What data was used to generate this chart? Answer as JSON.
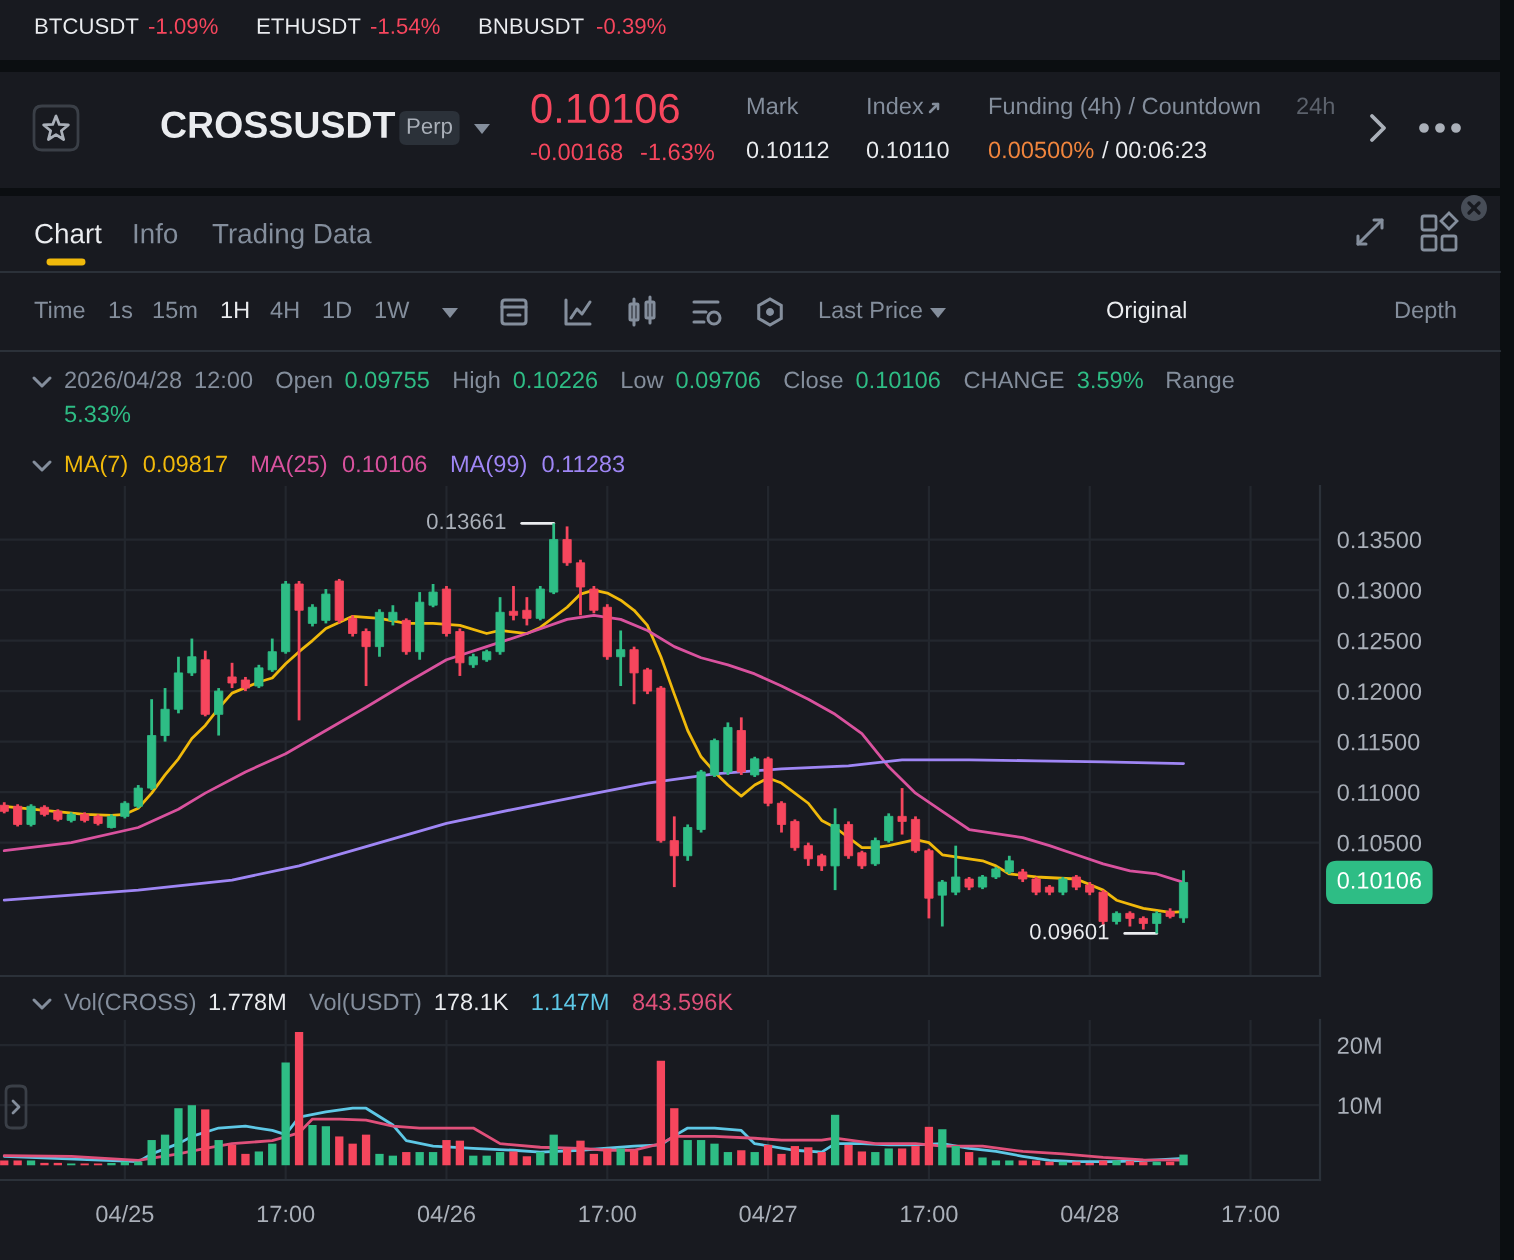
{
  "chart_data": [
    {
      "type": "other",
      "title": "CROSSUSDT",
      "annotations": [
        "BTCUSDT",
        "-1.09%",
        "ETHUSDT",
        "-1.54%",
        "BNBUSDT",
        "-0.39%",
        "Perp",
        "0.10106",
        "-0.00168",
        "-1.63%",
        "Mark",
        "0.10112",
        "Index",
        "0.10110",
        "Funding (4h) / Countdown",
        "0.00500%",
        "/ 00:06:23",
        "24h",
        "Chart",
        "Info",
        "Trading Data",
        "Time",
        "1s",
        "15m",
        "1H",
        "4H",
        "1D",
        "1W",
        "Last Price",
        "Original",
        "Depth"
      ]
    },
    {
      "type": "candlestick",
      "subtitle": "2026/04/28 12:00 Open 0.09755 High 0.10226 Low 0.09706 Close 0.10106 CHANGE 3.59% Range 5.33%",
      "x": [
        "2026-04-24T20:00",
        "2026-04-24T21:00",
        "2026-04-24T22:00",
        "2026-04-24T23:00",
        "2026-04-25T00:00",
        "2026-04-25T01:00",
        "2026-04-25T02:00",
        "2026-04-25T03:00",
        "2026-04-25T04:00",
        "2026-04-25T05:00",
        "2026-04-25T06:00",
        "2026-04-25T07:00",
        "2026-04-25T08:00",
        "2026-04-25T09:00",
        "2026-04-25T10:00",
        "2026-04-25T11:00",
        "2026-04-25T12:00",
        "2026-04-25T13:00",
        "2026-04-25T14:00",
        "2026-04-25T15:00",
        "2026-04-25T16:00",
        "2026-04-25T17:00",
        "2026-04-25T18:00",
        "2026-04-25T19:00",
        "2026-04-25T20:00",
        "2026-04-25T21:00",
        "2026-04-25T22:00",
        "2026-04-25T23:00",
        "2026-04-26T00:00",
        "2026-04-26T01:00",
        "2026-04-26T02:00",
        "2026-04-26T03:00",
        "2026-04-26T04:00",
        "2026-04-26T05:00",
        "2026-04-26T06:00",
        "2026-04-26T07:00",
        "2026-04-26T08:00",
        "2026-04-26T09:00",
        "2026-04-26T10:00",
        "2026-04-26T11:00",
        "2026-04-26T12:00",
        "2026-04-26T13:00",
        "2026-04-26T14:00",
        "2026-04-26T15:00",
        "2026-04-26T16:00",
        "2026-04-26T17:00",
        "2026-04-26T18:00",
        "2026-04-26T19:00",
        "2026-04-26T20:00",
        "2026-04-26T21:00",
        "2026-04-26T22:00",
        "2026-04-26T23:00",
        "2026-04-27T00:00",
        "2026-04-27T01:00",
        "2026-04-27T02:00",
        "2026-04-27T03:00",
        "2026-04-27T04:00",
        "2026-04-27T05:00",
        "2026-04-27T06:00",
        "2026-04-27T07:00",
        "2026-04-27T08:00",
        "2026-04-27T09:00",
        "2026-04-27T10:00",
        "2026-04-27T11:00",
        "2026-04-27T12:00",
        "2026-04-27T13:00",
        "2026-04-27T14:00",
        "2026-04-27T15:00",
        "2026-04-27T16:00",
        "2026-04-27T17:00",
        "2026-04-27T18:00",
        "2026-04-27T19:00",
        "2026-04-27T20:00",
        "2026-04-27T21:00",
        "2026-04-27T22:00",
        "2026-04-27T23:00",
        "2026-04-28T00:00",
        "2026-04-28T01:00",
        "2026-04-28T02:00",
        "2026-04-28T03:00",
        "2026-04-28T04:00",
        "2026-04-28T05:00",
        "2026-04-28T06:00",
        "2026-04-28T07:00",
        "2026-04-28T08:00",
        "2026-04-28T09:00",
        "2026-04-28T10:00",
        "2026-04-28T11:00",
        "2026-04-28T12:00"
      ],
      "ohlc": [
        [
          0.1087,
          0.109,
          0.1079,
          0.1081
        ],
        [
          0.1086,
          0.1088,
          0.1066,
          0.1068
        ],
        [
          0.1068,
          0.1088,
          0.1066,
          0.1086
        ],
        [
          0.1085,
          0.1087,
          0.1076,
          0.1078
        ],
        [
          0.1081,
          0.1083,
          0.1071,
          0.1073
        ],
        [
          0.1072,
          0.108,
          0.107,
          0.1078
        ],
        [
          0.1078,
          0.108,
          0.107,
          0.1072
        ],
        [
          0.1076,
          0.1078,
          0.1067,
          0.1069
        ],
        [
          0.1065,
          0.1078,
          0.1064,
          0.1076
        ],
        [
          0.1076,
          0.1091,
          0.1074,
          0.1089
        ],
        [
          0.1086,
          0.1107,
          0.1084,
          0.1104
        ],
        [
          0.1104,
          0.1192,
          0.1102,
          0.1156
        ],
        [
          0.1156,
          0.1203,
          0.115,
          0.1182
        ],
        [
          0.1182,
          0.1234,
          0.1178,
          0.1218
        ],
        [
          0.1218,
          0.1252,
          0.1215,
          0.1234
        ],
        [
          0.1231,
          0.124,
          0.1175,
          0.1177
        ],
        [
          0.1177,
          0.1203,
          0.1156,
          0.12
        ],
        [
          0.1214,
          0.1228,
          0.1203,
          0.1208
        ],
        [
          0.1211,
          0.1214,
          0.12,
          0.1203
        ],
        [
          0.1205,
          0.1226,
          0.1203,
          0.1223
        ],
        [
          0.1221,
          0.1252,
          0.1219,
          0.1239
        ],
        [
          0.1239,
          0.1309,
          0.1237,
          0.1306
        ],
        [
          0.1306,
          0.1309,
          0.1171,
          0.128
        ],
        [
          0.1267,
          0.1286,
          0.1264,
          0.1283
        ],
        [
          0.127,
          0.1301,
          0.1267,
          0.1296
        ],
        [
          0.1309,
          0.1311,
          0.1267,
          0.127
        ],
        [
          0.1272,
          0.1275,
          0.1254,
          0.1257
        ],
        [
          0.1259,
          0.1262,
          0.1205,
          0.1244
        ],
        [
          0.1244,
          0.1281,
          0.1234,
          0.1278
        ],
        [
          0.127,
          0.1285,
          0.1265,
          0.1278
        ],
        [
          0.127,
          0.1272,
          0.1236,
          0.1239
        ],
        [
          0.1239,
          0.1298,
          0.1231,
          0.1288
        ],
        [
          0.1285,
          0.1306,
          0.1283,
          0.1298
        ],
        [
          0.1301,
          0.1304,
          0.1254,
          0.1257
        ],
        [
          0.1259,
          0.1262,
          0.1215,
          0.1228
        ],
        [
          0.1226,
          0.1237,
          0.1223,
          0.1234
        ],
        [
          0.1231,
          0.1241,
          0.1229,
          0.1239
        ],
        [
          0.1239,
          0.1293,
          0.1236,
          0.1278
        ],
        [
          0.1279,
          0.1304,
          0.127,
          0.1275
        ],
        [
          0.128,
          0.1293,
          0.1265,
          0.1272
        ],
        [
          0.1272,
          0.1304,
          0.127,
          0.1301
        ],
        [
          0.1298,
          0.13661,
          0.1296,
          0.135
        ],
        [
          0.135,
          0.1363,
          0.1324,
          0.1327
        ],
        [
          0.1327,
          0.133,
          0.1275,
          0.1303
        ],
        [
          0.1301,
          0.1304,
          0.1277,
          0.128
        ],
        [
          0.1283,
          0.1286,
          0.1231,
          0.1234
        ],
        [
          0.1234,
          0.126,
          0.1205,
          0.1241
        ],
        [
          0.1241,
          0.1244,
          0.1187,
          0.1218
        ],
        [
          0.1221,
          0.1223,
          0.1197,
          0.12
        ],
        [
          0.1203,
          0.1205,
          0.105,
          0.1052
        ],
        [
          0.1052,
          0.1076,
          0.1006,
          0.1037
        ],
        [
          0.1037,
          0.1068,
          0.1032,
          0.1065
        ],
        [
          0.1063,
          0.1122,
          0.106,
          0.112
        ],
        [
          0.1117,
          0.1153,
          0.1115,
          0.1151
        ],
        [
          0.112,
          0.1169,
          0.1117,
          0.1164
        ],
        [
          0.1161,
          0.1174,
          0.1117,
          0.112
        ],
        [
          0.1117,
          0.1135,
          0.1115,
          0.1133
        ],
        [
          0.1133,
          0.1135,
          0.1086,
          0.1089
        ],
        [
          0.1089,
          0.1091,
          0.106,
          0.1068
        ],
        [
          0.1071,
          0.1073,
          0.1042,
          0.1045
        ],
        [
          0.1047,
          0.105,
          0.1027,
          0.1034
        ],
        [
          0.1037,
          0.1039,
          0.1022,
          0.1027
        ],
        [
          0.1027,
          0.1084,
          0.1003,
          0.1068
        ],
        [
          0.1068,
          0.1071,
          0.1034,
          0.1037
        ],
        [
          0.104,
          0.1042,
          0.1024,
          0.1027
        ],
        [
          0.1029,
          0.1055,
          0.1027,
          0.1052
        ],
        [
          0.1052,
          0.1079,
          0.105,
          0.1076
        ],
        [
          0.1076,
          0.1104,
          0.1058,
          0.1071
        ],
        [
          0.1073,
          0.1076,
          0.104,
          0.1042
        ],
        [
          0.1042,
          0.1044,
          0.0975,
          0.0995
        ],
        [
          0.0998,
          0.1013,
          0.0967,
          0.1011
        ],
        [
          0.1001,
          0.1047,
          0.0998,
          0.1016
        ],
        [
          0.1014,
          0.1016,
          0.1003,
          0.1006
        ],
        [
          0.1006,
          0.1018,
          0.1004,
          0.1016
        ],
        [
          0.1016,
          0.1026,
          0.1014,
          0.1024
        ],
        [
          0.1021,
          0.1037,
          0.1019,
          0.1032
        ],
        [
          0.1021,
          0.1024,
          0.1011,
          0.1014
        ],
        [
          0.1014,
          0.1016,
          0.0998,
          0.1001
        ],
        [
          0.1006,
          0.1008,
          0.0998,
          0.1001
        ],
        [
          0.1001,
          0.1016,
          0.0998,
          0.1014
        ],
        [
          0.1016,
          0.1018,
          0.1003,
          0.1006
        ],
        [
          0.1008,
          0.1011,
          0.0998,
          0.1001
        ],
        [
          0.1001,
          0.1003,
          0.0969,
          0.0972
        ],
        [
          0.0972,
          0.0982,
          0.0969,
          0.098
        ],
        [
          0.098,
          0.0982,
          0.0967,
          0.0975
        ],
        [
          0.0975,
          0.0977,
          0.0964,
          0.097
        ],
        [
          0.097,
          0.0982,
          0.09601,
          0.098
        ],
        [
          0.0982,
          0.0985,
          0.0975,
          0.0977
        ],
        [
          0.09755,
          0.10226,
          0.09706,
          0.10106
        ]
      ],
      "colors": [
        "#f6465d",
        "#f6465d",
        "#2ebd85",
        "#f6465d",
        "#f6465d",
        "#2ebd85",
        "#f6465d",
        "#f6465d",
        "#2ebd85",
        "#2ebd85",
        "#2ebd85",
        "#2ebd85",
        "#2ebd85",
        "#2ebd85",
        "#2ebd85",
        "#f6465d",
        "#2ebd85",
        "#f6465d",
        "#f6465d",
        "#2ebd85",
        "#2ebd85",
        "#2ebd85",
        "#f6465d",
        "#2ebd85",
        "#2ebd85",
        "#f6465d",
        "#f6465d",
        "#f6465d",
        "#2ebd85",
        "#2ebd85",
        "#f6465d",
        "#2ebd85",
        "#2ebd85",
        "#f6465d",
        "#f6465d",
        "#2ebd85",
        "#2ebd85",
        "#2ebd85",
        "#f6465d",
        "#f6465d",
        "#2ebd85",
        "#2ebd85",
        "#f6465d",
        "#f6465d",
        "#f6465d",
        "#f6465d",
        "#2ebd85",
        "#f6465d",
        "#f6465d",
        "#f6465d",
        "#f6465d",
        "#2ebd85",
        "#2ebd85",
        "#2ebd85",
        "#2ebd85",
        "#f6465d",
        "#2ebd85",
        "#f6465d",
        "#f6465d",
        "#f6465d",
        "#f6465d",
        "#f6465d",
        "#2ebd85",
        "#f6465d",
        "#f6465d",
        "#2ebd85",
        "#2ebd85",
        "#f6465d",
        "#f6465d",
        "#f6465d",
        "#2ebd85",
        "#2ebd85",
        "#f6465d",
        "#2ebd85",
        "#2ebd85",
        "#2ebd85",
        "#f6465d",
        "#f6465d",
        "#f6465d",
        "#2ebd85",
        "#f6465d",
        "#f6465d",
        "#f6465d",
        "#2ebd85",
        "#f6465d",
        "#f6465d",
        "#2ebd85",
        "#f6465d",
        "#2ebd85"
      ],
      "series": [
        {
          "name": "MA(7)",
          "type": "line",
          "color": "#f0b90b",
          "x": [
            "2026-04-24T20:00",
            "2026-04-24T23:00",
            "2026-04-25T02:00",
            "2026-04-25T04:00",
            "2026-04-25T05:00",
            "2026-04-25T06:00",
            "2026-04-25T07:00",
            "2026-04-25T08:00",
            "2026-04-25T09:00",
            "2026-04-25T10:00",
            "2026-04-25T11:00",
            "2026-04-25T12:00",
            "2026-04-25T13:00",
            "2026-04-25T15:00",
            "2026-04-25T16:00",
            "2026-04-25T17:00",
            "2026-04-25T18:00",
            "2026-04-25T19:00",
            "2026-04-25T20:00",
            "2026-04-25T22:00",
            "2026-04-26T00:00",
            "2026-04-26T02:00",
            "2026-04-26T04:00",
            "2026-04-26T06:00",
            "2026-04-26T08:00",
            "2026-04-26T09:00",
            "2026-04-26T11:00",
            "2026-04-26T12:00",
            "2026-04-26T14:00",
            "2026-04-26T15:00",
            "2026-04-26T16:00",
            "2026-04-26T17:00",
            "2026-04-26T18:00",
            "2026-04-26T19:00",
            "2026-04-26T20:00",
            "2026-04-26T21:00",
            "2026-04-26T22:00",
            "2026-04-26T23:00",
            "2026-04-27T00:00",
            "2026-04-27T01:00",
            "2026-04-27T02:00",
            "2026-04-27T03:00",
            "2026-04-27T04:00",
            "2026-04-27T05:00",
            "2026-04-27T06:00",
            "2026-04-27T08:00",
            "2026-04-27T09:00",
            "2026-04-27T10:00",
            "2026-04-27T12:00",
            "2026-04-27T13:00",
            "2026-04-27T14:00",
            "2026-04-27T16:00",
            "2026-04-27T17:00",
            "2026-04-27T18:00",
            "2026-04-27T20:00",
            "2026-04-27T21:00",
            "2026-04-27T22:00",
            "2026-04-27T23:00",
            "2026-04-28T01:00",
            "2026-04-28T04:00",
            "2026-04-28T06:00",
            "2026-04-28T07:00",
            "2026-04-28T09:00",
            "2026-04-28T11:00",
            "2026-04-28T12:00"
          ],
          "values": [
            0.1086,
            0.1082,
            0.1078,
            0.1077,
            0.1078,
            0.1084,
            0.1099,
            0.1117,
            0.1133,
            0.1153,
            0.1166,
            0.1183,
            0.1198,
            0.1209,
            0.1213,
            0.1227,
            0.1239,
            0.125,
            0.1262,
            0.1274,
            0.1272,
            0.1267,
            0.1267,
            0.1265,
            0.1257,
            0.126,
            0.1257,
            0.1263,
            0.1283,
            0.1296,
            0.13,
            0.1297,
            0.129,
            0.128,
            0.1265,
            0.1234,
            0.1197,
            0.1161,
            0.1135,
            0.112,
            0.1107,
            0.1096,
            0.1107,
            0.1114,
            0.1109,
            0.1089,
            0.1072,
            0.1065,
            0.1045,
            0.1045,
            0.1047,
            0.1053,
            0.105,
            0.1038,
            0.1034,
            0.1032,
            0.1027,
            0.1019,
            0.1016,
            0.1014,
            0.1003,
            0.0993,
            0.0985,
            0.0981,
            0.09817
          ]
        },
        {
          "name": "MA(25)",
          "type": "line",
          "color": "#d9529e",
          "x": [
            "2026-04-24T20:00",
            "2026-04-25T01:00",
            "2026-04-25T06:00",
            "2026-04-25T09:00",
            "2026-04-25T11:00",
            "2026-04-25T14:00",
            "2026-04-25T17:00",
            "2026-04-25T20:00",
            "2026-04-25T23:00",
            "2026-04-26T02:00",
            "2026-04-26T05:00",
            "2026-04-26T08:00",
            "2026-04-26T11:00",
            "2026-04-26T14:00",
            "2026-04-26T16:00",
            "2026-04-26T18:00",
            "2026-04-26T20:00",
            "2026-04-26T22:00",
            "2026-04-27T00:00",
            "2026-04-27T02:00",
            "2026-04-27T04:00",
            "2026-04-27T06:00",
            "2026-04-27T08:00",
            "2026-04-27T10:00",
            "2026-04-27T12:00",
            "2026-04-27T14:00",
            "2026-04-27T16:00",
            "2026-04-27T18:00",
            "2026-04-27T20:00",
            "2026-04-27T22:00",
            "2026-04-28T00:00",
            "2026-04-28T02:00",
            "2026-04-28T04:00",
            "2026-04-28T06:00",
            "2026-04-28T08:00",
            "2026-04-28T10:00",
            "2026-04-28T12:00"
          ],
          "values": [
            0.1042,
            0.105,
            0.1065,
            0.1083,
            0.1099,
            0.112,
            0.1138,
            0.1161,
            0.1184,
            0.1208,
            0.1231,
            0.1244,
            0.1257,
            0.1271,
            0.1275,
            0.1271,
            0.126,
            0.1244,
            0.1233,
            0.1226,
            0.1217,
            0.1205,
            0.1192,
            0.1177,
            0.1158,
            0.1125,
            0.1099,
            0.1081,
            0.1063,
            0.1059,
            0.1055,
            0.1047,
            0.1038,
            0.1029,
            0.1022,
            0.1019,
            0.10106
          ]
        },
        {
          "name": "MA(99)",
          "type": "line",
          "color": "#9f86f5",
          "x": [
            "2026-04-24T20:00",
            "2026-04-25T06:00",
            "2026-04-25T13:00",
            "2026-04-25T18:00",
            "2026-04-25T23:00",
            "2026-04-26T05:00",
            "2026-04-26T10:00",
            "2026-04-26T15:00",
            "2026-04-26T20:00",
            "2026-04-27T01:00",
            "2026-04-27T06:00",
            "2026-04-27T11:00",
            "2026-04-27T15:00",
            "2026-04-27T20:00",
            "2026-04-28T01:00",
            "2026-04-28T06:00",
            "2026-04-28T12:00"
          ],
          "values": [
            0.0993,
            0.1003,
            0.1013,
            0.1027,
            0.1046,
            0.1069,
            0.1083,
            0.1096,
            0.1109,
            0.1118,
            0.1123,
            0.1126,
            0.1132,
            0.1132,
            0.1131,
            0.113,
            0.11283
          ]
        }
      ],
      "xlim": [
        "2026-04-24T19:41",
        "2026-04-28T22:11"
      ],
      "xticks": [
        {
          "value": "2026-04-25T05:00",
          "label": null
        },
        {
          "value": "2026-04-25T17:00",
          "label": null
        },
        {
          "value": "2026-04-26T05:00",
          "label": null
        },
        {
          "value": "2026-04-26T17:00",
          "label": null
        },
        {
          "value": "2026-04-27T05:00",
          "label": null
        },
        {
          "value": "2026-04-27T17:00",
          "label": null
        },
        {
          "value": "2026-04-28T05:00",
          "label": null
        },
        {
          "value": "2026-04-28T17:00",
          "label": null
        }
      ],
      "ylim": [
        0.0918,
        0.1403
      ],
      "yticks": [
        {
          "value": 0.105,
          "label": "0.10500"
        },
        {
          "value": 0.11,
          "label": "0.11000"
        },
        {
          "value": 0.115,
          "label": "0.11500"
        },
        {
          "value": 0.12,
          "label": "0.12000"
        },
        {
          "value": 0.125,
          "label": "0.12500"
        },
        {
          "value": 0.13,
          "label": "0.13000"
        },
        {
          "value": 0.135,
          "label": "0.13500"
        }
      ],
      "grid": true,
      "tick_labels": "y",
      "legend": "top left",
      "annotations": [
        "0.09817",
        "0.10106",
        "0.11283",
        "0.10106",
        {
          "text": "0.13661",
          "x": "2026-04-26T13:00",
          "y": 0.13661
        },
        {
          "text": "0.09601",
          "x": "2026-04-28T10:00",
          "y": 0.09601
        }
      ]
    },
    {
      "type": "bar",
      "subtitle": "Vol(CROSS) 1.778M Vol(USDT) 178.1K",
      "x": [
        "2026-04-24T20:00",
        "2026-04-24T21:00",
        "2026-04-24T22:00",
        "2026-04-24T23:00",
        "2026-04-25T00:00",
        "2026-04-25T01:00",
        "2026-04-25T02:00",
        "2026-04-25T03:00",
        "2026-04-25T04:00",
        "2026-04-25T05:00",
        "2026-04-25T06:00",
        "2026-04-25T07:00",
        "2026-04-25T08:00",
        "2026-04-25T09:00",
        "2026-04-25T10:00",
        "2026-04-25T11:00",
        "2026-04-25T12:00",
        "2026-04-25T13:00",
        "2026-04-25T14:00",
        "2026-04-25T15:00",
        "2026-04-25T16:00",
        "2026-04-25T17:00",
        "2026-04-25T18:00",
        "2026-04-25T19:00",
        "2026-04-25T20:00",
        "2026-04-25T21:00",
        "2026-04-25T22:00",
        "2026-04-25T23:00",
        "2026-04-26T00:00",
        "2026-04-26T01:00",
        "2026-04-26T02:00",
        "2026-04-26T03:00",
        "2026-04-26T04:00",
        "2026-04-26T05:00",
        "2026-04-26T06:00",
        "2026-04-26T07:00",
        "2026-04-26T08:00",
        "2026-04-26T09:00",
        "2026-04-26T10:00",
        "2026-04-26T11:00",
        "2026-04-26T12:00",
        "2026-04-26T13:00",
        "2026-04-26T14:00",
        "2026-04-26T15:00",
        "2026-04-26T16:00",
        "2026-04-26T17:00",
        "2026-04-26T18:00",
        "2026-04-26T19:00",
        "2026-04-26T20:00",
        "2026-04-26T21:00",
        "2026-04-26T22:00",
        "2026-04-26T23:00",
        "2026-04-27T00:00",
        "2026-04-27T01:00",
        "2026-04-27T02:00",
        "2026-04-27T03:00",
        "2026-04-27T04:00",
        "2026-04-27T05:00",
        "2026-04-27T06:00",
        "2026-04-27T07:00",
        "2026-04-27T08:00",
        "2026-04-27T09:00",
        "2026-04-27T10:00",
        "2026-04-27T11:00",
        "2026-04-27T12:00",
        "2026-04-27T13:00",
        "2026-04-27T14:00",
        "2026-04-27T15:00",
        "2026-04-27T16:00",
        "2026-04-27T17:00",
        "2026-04-27T18:00",
        "2026-04-27T19:00",
        "2026-04-27T20:00",
        "2026-04-27T21:00",
        "2026-04-27T22:00",
        "2026-04-27T23:00",
        "2026-04-28T00:00",
        "2026-04-28T01:00",
        "2026-04-28T02:00",
        "2026-04-28T03:00",
        "2026-04-28T04:00",
        "2026-04-28T05:00",
        "2026-04-28T06:00",
        "2026-04-28T07:00",
        "2026-04-28T08:00",
        "2026-04-28T09:00",
        "2026-04-28T10:00",
        "2026-04-28T11:00",
        "2026-04-28T12:00"
      ],
      "series": [
        {
          "type": "bar",
          "colors": [
            "#f6465d",
            "#f6465d",
            "#2ebd85",
            "#f6465d",
            "#f6465d",
            "#2ebd85",
            "#f6465d",
            "#f6465d",
            "#2ebd85",
            "#2ebd85",
            "#2ebd85",
            "#2ebd85",
            "#2ebd85",
            "#2ebd85",
            "#2ebd85",
            "#f6465d",
            "#2ebd85",
            "#f6465d",
            "#f6465d",
            "#2ebd85",
            "#2ebd85",
            "#2ebd85",
            "#f6465d",
            "#2ebd85",
            "#2ebd85",
            "#f6465d",
            "#f6465d",
            "#f6465d",
            "#2ebd85",
            "#2ebd85",
            "#f6465d",
            "#2ebd85",
            "#2ebd85",
            "#f6465d",
            "#f6465d",
            "#2ebd85",
            "#2ebd85",
            "#2ebd85",
            "#f6465d",
            "#f6465d",
            "#2ebd85",
            "#2ebd85",
            "#f6465d",
            "#f6465d",
            "#f6465d",
            "#f6465d",
            "#2ebd85",
            "#f6465d",
            "#f6465d",
            "#f6465d",
            "#f6465d",
            "#2ebd85",
            "#2ebd85",
            "#2ebd85",
            "#2ebd85",
            "#f6465d",
            "#2ebd85",
            "#f6465d",
            "#f6465d",
            "#f6465d",
            "#f6465d",
            "#f6465d",
            "#2ebd85",
            "#f6465d",
            "#f6465d",
            "#2ebd85",
            "#2ebd85",
            "#f6465d",
            "#f6465d",
            "#f6465d",
            "#2ebd85",
            "#2ebd85",
            "#f6465d",
            "#2ebd85",
            "#2ebd85",
            "#2ebd85",
            "#f6465d",
            "#f6465d",
            "#f6465d",
            "#2ebd85",
            "#f6465d",
            "#f6465d",
            "#f6465d",
            "#2ebd85",
            "#f6465d",
            "#f6465d",
            "#2ebd85",
            "#f6465d",
            "#2ebd85"
          ],
          "values": [
            800000,
            800000,
            800000,
            400000,
            400000,
            300000,
            300000,
            300000,
            400000,
            600000,
            600000,
            4200000,
            5100000,
            9500000,
            10000000,
            9300000,
            4200000,
            3400000,
            1900000,
            2300000,
            3600000,
            17100000,
            22200000,
            6700000,
            6500000,
            4800000,
            3600000,
            5100000,
            1900000,
            1600000,
            2200000,
            2200000,
            2200000,
            4200000,
            4100000,
            1600000,
            1600000,
            2200000,
            2300000,
            1500000,
            2200000,
            5100000,
            2800000,
            4100000,
            1900000,
            2800000,
            2800000,
            2500000,
            1500000,
            17400000,
            9500000,
            4200000,
            4200000,
            3600000,
            2200000,
            2500000,
            2200000,
            3400000,
            1900000,
            3200000,
            3000000,
            2200000,
            8400000,
            3400000,
            2300000,
            2200000,
            2800000,
            2800000,
            3200000,
            6400000,
            6000000,
            3200000,
            2200000,
            1300000,
            800000,
            800000,
            800000,
            800000,
            600000,
            600000,
            600000,
            400000,
            800000,
            800000,
            700000,
            600000,
            600000,
            600000,
            1778000
          ]
        },
        {
          "type": "line",
          "color": "#5ec8e6",
          "x": [
            "2026-04-24T20:00",
            "2026-04-25T06:00",
            "2026-04-25T07:00",
            "2026-04-25T09:00",
            "2026-04-25T10:00",
            "2026-04-25T12:00",
            "2026-04-25T14:00",
            "2026-04-25T16:00",
            "2026-04-25T17:00",
            "2026-04-25T18:00",
            "2026-04-25T20:00",
            "2026-04-25T22:00",
            "2026-04-25T23:00",
            "2026-04-26T01:00",
            "2026-04-26T02:00",
            "2026-04-26T04:00",
            "2026-04-26T07:00",
            "2026-04-26T10:00",
            "2026-04-26T12:00",
            "2026-04-26T15:00",
            "2026-04-26T19:00",
            "2026-04-26T21:00",
            "2026-04-26T22:00",
            "2026-04-26T23:00",
            "2026-04-27T01:00",
            "2026-04-27T03:00",
            "2026-04-27T04:00",
            "2026-04-27T07:00",
            "2026-04-27T09:00",
            "2026-04-27T10:00",
            "2026-04-27T12:00",
            "2026-04-27T14:00",
            "2026-04-27T16:00",
            "2026-04-27T18:00",
            "2026-04-27T20:00",
            "2026-04-27T22:00",
            "2026-04-28T00:00",
            "2026-04-28T02:00",
            "2026-04-28T04:00",
            "2026-04-28T07:00",
            "2026-04-28T10:00",
            "2026-04-28T12:00"
          ],
          "values": [
            1500000,
            600000,
            1900000,
            3600000,
            4800000,
            6200000,
            6500000,
            5800000,
            5100000,
            8000000,
            8900000,
            9500000,
            9500000,
            6700000,
            4100000,
            3200000,
            2800000,
            2500000,
            2200000,
            2500000,
            3200000,
            3400000,
            4900000,
            6200000,
            6200000,
            5800000,
            3600000,
            2500000,
            2200000,
            3600000,
            3600000,
            3400000,
            3400000,
            3600000,
            2800000,
            2300000,
            1500000,
            800000,
            600000,
            600000,
            900000,
            1147000
          ]
        },
        {
          "type": "line",
          "color": "#e0507a",
          "x": [
            "2026-04-24T20:00",
            "2026-04-25T01:00",
            "2026-04-25T06:00",
            "2026-04-25T09:00",
            "2026-04-25T11:00",
            "2026-04-25T13:00",
            "2026-04-25T16:00",
            "2026-04-25T18:00",
            "2026-04-25T19:00",
            "2026-04-25T21:00",
            "2026-04-25T23:00",
            "2026-04-26T01:00",
            "2026-04-26T03:00",
            "2026-04-26T07:00",
            "2026-04-26T09:00",
            "2026-04-26T12:00",
            "2026-04-26T15:00",
            "2026-04-26T17:00",
            "2026-04-26T19:00",
            "2026-04-26T21:00",
            "2026-04-26T22:00",
            "2026-04-27T01:00",
            "2026-04-27T04:00",
            "2026-04-27T06:00",
            "2026-04-27T09:00",
            "2026-04-27T10:00",
            "2026-04-27T13:00",
            "2026-04-27T16:00",
            "2026-04-27T18:00",
            "2026-04-27T21:00",
            "2026-04-28T00:00",
            "2026-04-28T03:00",
            "2026-04-28T06:00",
            "2026-04-28T09:00",
            "2026-04-28T12:00"
          ],
          "values": [
            1600000,
            1500000,
            800000,
            1900000,
            2800000,
            3600000,
            4100000,
            5400000,
            7700000,
            7700000,
            7500000,
            6500000,
            6200000,
            6200000,
            3600000,
            3000000,
            2800000,
            2500000,
            2500000,
            3600000,
            4800000,
            4800000,
            4500000,
            4200000,
            4200000,
            4500000,
            3600000,
            3600000,
            3200000,
            3200000,
            2300000,
            1900000,
            1300000,
            900000,
            843596
          ]
        }
      ],
      "xlim": [
        "2026-04-24T19:41",
        "2026-04-28T22:11"
      ],
      "xticks": [
        {
          "value": "2026-04-25T05:00",
          "label": "04/25"
        },
        {
          "value": "2026-04-25T17:00",
          "label": "17:00"
        },
        {
          "value": "2026-04-26T05:00",
          "label": "04/26"
        },
        {
          "value": "2026-04-26T17:00",
          "label": "17:00"
        },
        {
          "value": "2026-04-27T05:00",
          "label": "04/27"
        },
        {
          "value": "2026-04-27T17:00",
          "label": "17:00"
        },
        {
          "value": "2026-04-28T05:00",
          "label": "04/28"
        },
        {
          "value": "2026-04-28T17:00",
          "label": "17:00"
        }
      ],
      "ylim": [
        -2450000,
        24180000
      ],
      "yticks": [
        {
          "value": 10000000,
          "label": "10M"
        },
        {
          "value": 20000000,
          "label": "20M"
        }
      ],
      "grid": true,
      "annotations": [
        "1.147M",
        "843.596K"
      ]
    }
  ]
}
